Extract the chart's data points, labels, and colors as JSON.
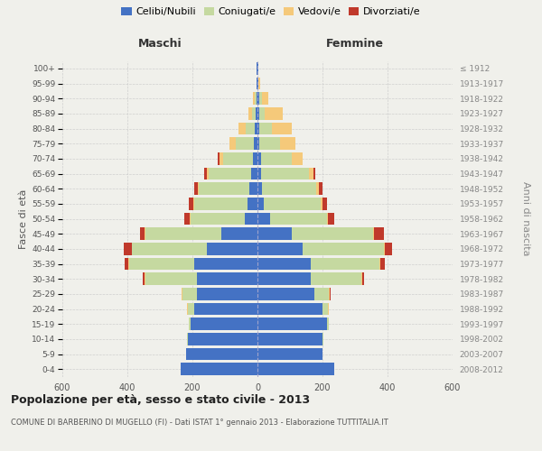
{
  "age_groups": [
    "0-4",
    "5-9",
    "10-14",
    "15-19",
    "20-24",
    "25-29",
    "30-34",
    "35-39",
    "40-44",
    "45-49",
    "50-54",
    "55-59",
    "60-64",
    "65-69",
    "70-74",
    "75-79",
    "80-84",
    "85-89",
    "90-94",
    "95-99",
    "100+"
  ],
  "birth_years": [
    "2008-2012",
    "2003-2007",
    "1998-2002",
    "1993-1997",
    "1988-1992",
    "1983-1987",
    "1978-1982",
    "1973-1977",
    "1968-1972",
    "1963-1967",
    "1958-1962",
    "1953-1957",
    "1948-1952",
    "1943-1947",
    "1938-1942",
    "1933-1937",
    "1928-1932",
    "1923-1927",
    "1918-1922",
    "1913-1917",
    "≤ 1912"
  ],
  "maschi_celibi": [
    235,
    220,
    215,
    205,
    195,
    185,
    185,
    195,
    155,
    110,
    40,
    30,
    25,
    20,
    15,
    12,
    8,
    5,
    4,
    2,
    2
  ],
  "maschi_coniugati": [
    0,
    0,
    2,
    5,
    20,
    45,
    160,
    200,
    230,
    235,
    165,
    165,
    155,
    130,
    90,
    55,
    28,
    12,
    5,
    0,
    0
  ],
  "maschi_vedovi": [
    0,
    0,
    0,
    0,
    2,
    2,
    2,
    2,
    2,
    2,
    2,
    2,
    4,
    5,
    12,
    18,
    22,
    12,
    5,
    0,
    0
  ],
  "maschi_divorziati": [
    0,
    0,
    0,
    0,
    0,
    0,
    5,
    10,
    25,
    15,
    18,
    15,
    10,
    10,
    5,
    0,
    0,
    0,
    0,
    0,
    0
  ],
  "femmine_celibi": [
    235,
    200,
    200,
    215,
    200,
    175,
    165,
    165,
    140,
    105,
    38,
    20,
    15,
    12,
    10,
    5,
    5,
    5,
    5,
    2,
    2
  ],
  "femmine_coniugati": [
    0,
    0,
    2,
    5,
    18,
    45,
    155,
    210,
    250,
    250,
    175,
    175,
    165,
    145,
    95,
    65,
    40,
    18,
    8,
    0,
    0
  ],
  "femmine_vedovi": [
    0,
    0,
    0,
    0,
    2,
    2,
    2,
    2,
    3,
    3,
    5,
    5,
    10,
    15,
    35,
    48,
    60,
    55,
    20,
    5,
    0
  ],
  "femmine_divorziati": [
    0,
    0,
    0,
    0,
    0,
    2,
    5,
    15,
    20,
    30,
    18,
    15,
    10,
    5,
    0,
    0,
    0,
    0,
    0,
    0,
    0
  ],
  "color_celibi": "#4472c4",
  "color_coniugati": "#c5d9a0",
  "color_vedovi": "#f5c97a",
  "color_divorziati": "#c0392b",
  "title": "Popolazione per età, sesso e stato civile - 2013",
  "subtitle": "COMUNE DI BARBERINO DI MUGELLO (FI) - Dati ISTAT 1° gennaio 2013 - Elaborazione TUTTITALIA.IT",
  "ylabel_left": "Fasce di età",
  "ylabel_right": "Anni di nascita",
  "xlabel_left": "Maschi",
  "xlabel_right": "Femmine",
  "bg_color": "#f0f0eb",
  "xlim": 600
}
